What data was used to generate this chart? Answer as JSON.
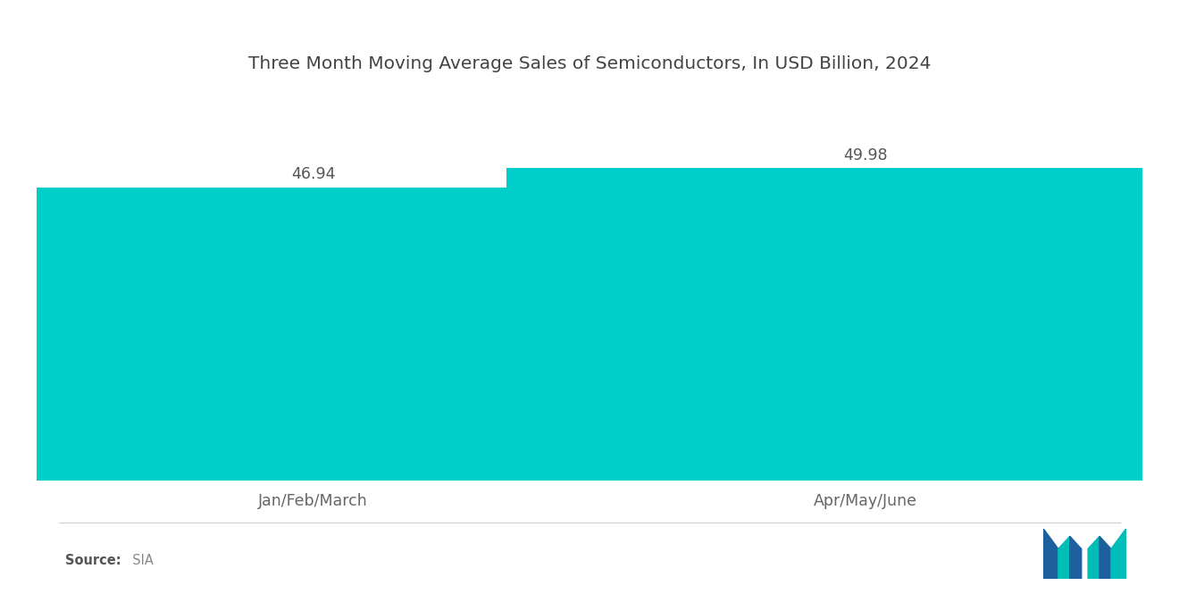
{
  "title": "Three Month Moving Average Sales of Semiconductors, In USD Billion, 2024",
  "categories": [
    "Jan/Feb/March",
    "Apr/May/June"
  ],
  "values": [
    46.94,
    49.98
  ],
  "bar_color": "#00CEC9",
  "background_color": "#ffffff",
  "title_fontsize": 14.5,
  "label_fontsize": 12.5,
  "value_fontsize": 12.5,
  "source_bold": "Source:",
  "source_normal": "  SIA",
  "ylim": [
    0,
    60
  ],
  "bar_width": 0.65,
  "x_positions": [
    0.25,
    0.75
  ],
  "xlim": [
    0,
    1.0
  ]
}
